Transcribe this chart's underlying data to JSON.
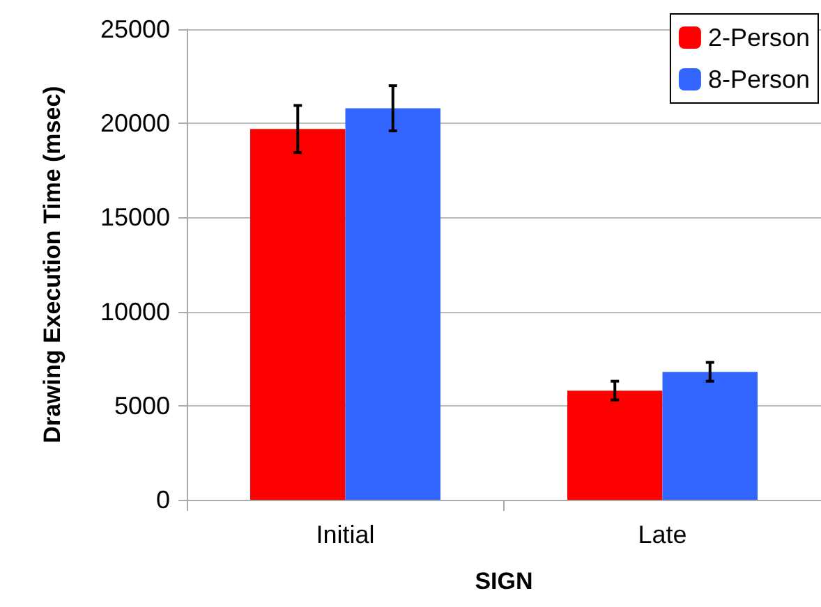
{
  "chart_data": {
    "type": "bar",
    "xlabel": "SIGN",
    "ylabel": "Drawing Execution Time (msec)",
    "categories": [
      "Initial",
      "Late"
    ],
    "series": [
      {
        "name": "2-Person",
        "color": "#ff0000",
        "values": [
          19700,
          5800
        ],
        "errors": [
          1250,
          500
        ]
      },
      {
        "name": "8-Person",
        "color": "#3366ff",
        "values": [
          20800,
          6800
        ],
        "errors": [
          1200,
          500
        ]
      }
    ],
    "ylim": [
      0,
      25000
    ],
    "yticks": [
      0,
      5000,
      10000,
      15000,
      20000,
      25000
    ],
    "grid": "y",
    "legend": "top right"
  }
}
